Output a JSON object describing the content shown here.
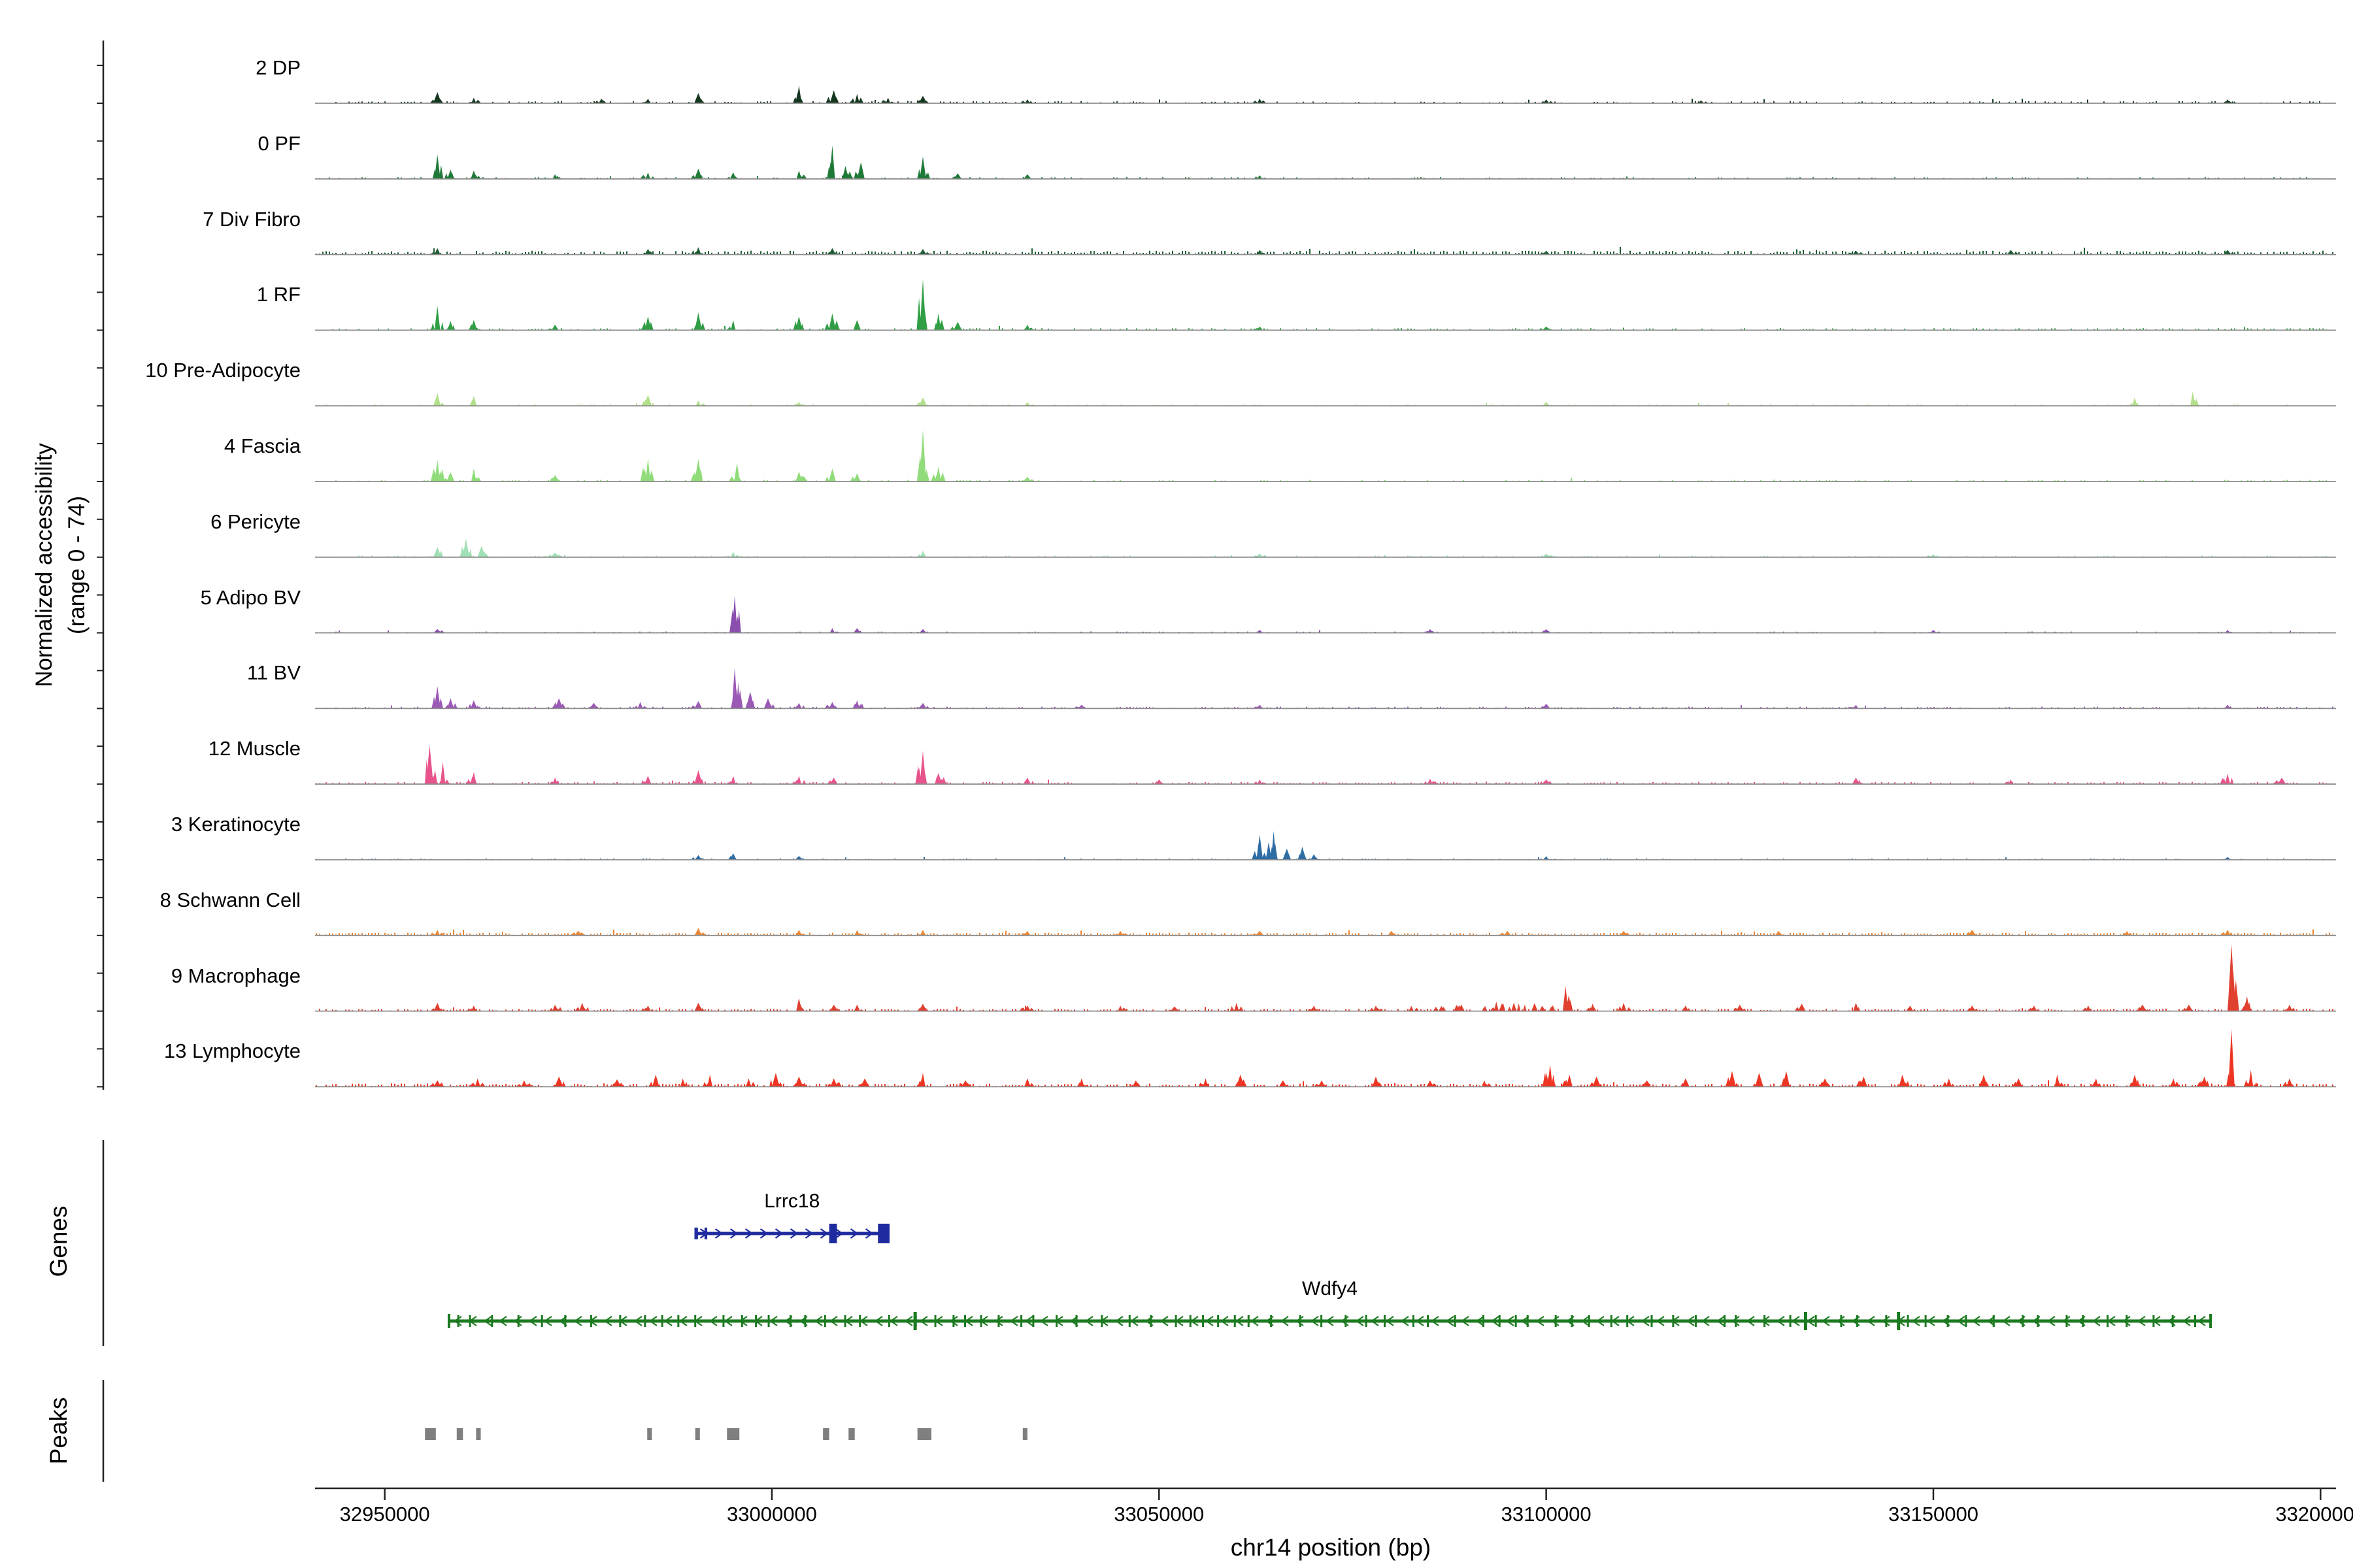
{
  "y_axis": {
    "label_line1": "Normalized accessibility",
    "label_line2": "(range 0 - 74)"
  },
  "x_axis": {
    "label": "chr14 position (bp)",
    "ticks": [
      {
        "bp": 32950000,
        "label": "32950000"
      },
      {
        "bp": 33000000,
        "label": "33000000"
      },
      {
        "bp": 33050000,
        "label": "33050000"
      },
      {
        "bp": 33100000,
        "label": "33100000"
      },
      {
        "bp": 33150000,
        "label": "33150000"
      },
      {
        "bp": 33200000,
        "label": "33200000"
      }
    ]
  },
  "sections": {
    "genes_label": "Genes",
    "peaks_label": "Peaks"
  },
  "chart_data": {
    "type": "area",
    "subtype": "genome-accessibility-tracks",
    "region": {
      "chrom": "chr14",
      "start": 32941000,
      "end": 33202000
    },
    "ylim": [
      0,
      74
    ],
    "tracks": [
      {
        "name": "2 DP",
        "color": "#14381f",
        "noise_amp": 2.2,
        "noise_density": 0.45,
        "peaks": [
          [
            32956800,
            12
          ],
          [
            32961500,
            6
          ],
          [
            32978000,
            5
          ],
          [
            32984000,
            5
          ],
          [
            32990500,
            11
          ],
          [
            33003500,
            19
          ],
          [
            33008000,
            14
          ],
          [
            33011000,
            10
          ],
          [
            33015000,
            6
          ],
          [
            33019500,
            8
          ],
          [
            33033000,
            4
          ],
          [
            33063000,
            5
          ],
          [
            33100000,
            4
          ],
          [
            33120000,
            3
          ],
          [
            33188000,
            4
          ]
        ]
      },
      {
        "name": "0 PF",
        "color": "#1f7a38",
        "noise_amp": 1.8,
        "noise_density": 0.4,
        "peaks": [
          [
            32956800,
            26
          ],
          [
            32958500,
            10
          ],
          [
            32961500,
            9
          ],
          [
            32972000,
            5
          ],
          [
            32984000,
            7
          ],
          [
            32990500,
            11
          ],
          [
            32995000,
            7
          ],
          [
            33003500,
            9
          ],
          [
            33007800,
            36
          ],
          [
            33009500,
            14
          ],
          [
            33011500,
            18
          ],
          [
            33019500,
            24
          ],
          [
            33024000,
            6
          ],
          [
            33033000,
            5
          ],
          [
            33063000,
            4
          ]
        ]
      },
      {
        "name": "7 Div Fibro",
        "color": "#1d5c32",
        "noise_amp": 4.2,
        "noise_density": 0.8,
        "peaks": [
          [
            32956800,
            7
          ],
          [
            32984000,
            6
          ],
          [
            32990500,
            8
          ],
          [
            33007800,
            7
          ],
          [
            33019500,
            6
          ],
          [
            33063000,
            5
          ],
          [
            33100000,
            4
          ],
          [
            33140000,
            4
          ],
          [
            33160000,
            5
          ],
          [
            33188000,
            5
          ]
        ]
      },
      {
        "name": "1 RF",
        "color": "#2f9e44",
        "noise_amp": 2.2,
        "noise_density": 0.5,
        "peaks": [
          [
            32956800,
            26
          ],
          [
            32958500,
            10
          ],
          [
            32961500,
            11
          ],
          [
            32972000,
            6
          ],
          [
            32984000,
            15
          ],
          [
            32990500,
            19
          ],
          [
            32995000,
            11
          ],
          [
            33003500,
            15
          ],
          [
            33007800,
            18
          ],
          [
            33011000,
            11
          ],
          [
            33019500,
            55
          ],
          [
            33021500,
            18
          ],
          [
            33024000,
            9
          ],
          [
            33033000,
            6
          ],
          [
            33063000,
            4
          ],
          [
            33100000,
            4
          ]
        ]
      },
      {
        "name": "10 Pre-Adipocyte",
        "color": "#b2df8a",
        "noise_amp": 1.5,
        "noise_density": 0.35,
        "peaks": [
          [
            32956800,
            14
          ],
          [
            32961500,
            11
          ],
          [
            32984000,
            12
          ],
          [
            32990500,
            6
          ],
          [
            33003500,
            4
          ],
          [
            33019500,
            9
          ],
          [
            33033000,
            4
          ],
          [
            33100000,
            4
          ],
          [
            33176000,
            9
          ],
          [
            33183500,
            16
          ]
        ]
      },
      {
        "name": "4 Fascia",
        "color": "#90dc7a",
        "noise_amp": 1.8,
        "noise_density": 0.4,
        "peaks": [
          [
            32956800,
            23
          ],
          [
            32958500,
            10
          ],
          [
            32961500,
            14
          ],
          [
            32972000,
            7
          ],
          [
            32984000,
            25
          ],
          [
            32990500,
            24
          ],
          [
            32995500,
            20
          ],
          [
            33003500,
            11
          ],
          [
            33007800,
            14
          ],
          [
            33011000,
            9
          ],
          [
            33019500,
            56
          ],
          [
            33021500,
            16
          ],
          [
            33033000,
            5
          ]
        ]
      },
      {
        "name": "6 Pericyte",
        "color": "#9fe0b5",
        "noise_amp": 1.6,
        "noise_density": 0.4,
        "peaks": [
          [
            32956800,
            11
          ],
          [
            32960500,
            20
          ],
          [
            32962500,
            12
          ],
          [
            32972000,
            5
          ],
          [
            32995000,
            6
          ],
          [
            33019500,
            7
          ],
          [
            33063000,
            4
          ],
          [
            33100000,
            4
          ],
          [
            33150000,
            3
          ]
        ]
      },
      {
        "name": "5 Adipo BV",
        "color": "#8a4fae",
        "noise_amp": 1.4,
        "noise_density": 0.35,
        "peaks": [
          [
            32956800,
            4
          ],
          [
            32995200,
            40
          ],
          [
            33007800,
            5
          ],
          [
            33011000,
            5
          ],
          [
            33019500,
            4
          ],
          [
            33063000,
            3
          ],
          [
            33085000,
            4
          ],
          [
            33100000,
            4
          ],
          [
            33150000,
            3
          ],
          [
            33188000,
            3
          ]
        ]
      },
      {
        "name": "11 BV",
        "color": "#9b59b6",
        "noise_amp": 2.0,
        "noise_density": 0.5,
        "peaks": [
          [
            32956800,
            24
          ],
          [
            32958500,
            11
          ],
          [
            32961500,
            9
          ],
          [
            32972500,
            11
          ],
          [
            32977000,
            6
          ],
          [
            32983000,
            7
          ],
          [
            32990500,
            8
          ],
          [
            32995200,
            44
          ],
          [
            32997200,
            18
          ],
          [
            32999500,
            11
          ],
          [
            33003500,
            6
          ],
          [
            33007800,
            7
          ],
          [
            33011000,
            9
          ],
          [
            33019500,
            6
          ],
          [
            33040000,
            4
          ],
          [
            33063000,
            4
          ],
          [
            33100000,
            5
          ],
          [
            33140000,
            4
          ],
          [
            33188000,
            4
          ]
        ]
      },
      {
        "name": "12 Muscle",
        "color": "#e8538c",
        "noise_amp": 2.4,
        "noise_density": 0.6,
        "peaks": [
          [
            32955800,
            42
          ],
          [
            32957500,
            24
          ],
          [
            32961500,
            13
          ],
          [
            32972000,
            7
          ],
          [
            32984000,
            9
          ],
          [
            32990500,
            15
          ],
          [
            32995000,
            9
          ],
          [
            33003500,
            9
          ],
          [
            33008000,
            7
          ],
          [
            33019500,
            36
          ],
          [
            33021500,
            12
          ],
          [
            33033000,
            7
          ],
          [
            33050000,
            5
          ],
          [
            33063000,
            5
          ],
          [
            33085000,
            6
          ],
          [
            33100000,
            5
          ],
          [
            33140000,
            7
          ],
          [
            33160000,
            5
          ],
          [
            33188000,
            11
          ],
          [
            33195000,
            7
          ]
        ]
      },
      {
        "name": "3 Keratinocyte",
        "color": "#2e6da4",
        "noise_amp": 1.4,
        "noise_density": 0.4,
        "peaks": [
          [
            32990500,
            5
          ],
          [
            32995000,
            7
          ],
          [
            33003500,
            4
          ],
          [
            33063000,
            27
          ],
          [
            33064800,
            31
          ],
          [
            33066500,
            12
          ],
          [
            33068500,
            14
          ],
          [
            33070000,
            6
          ],
          [
            33100000,
            4
          ],
          [
            33188000,
            3
          ]
        ]
      },
      {
        "name": "8 Schwann Cell",
        "color": "#ec8633",
        "noise_amp": 3.0,
        "noise_density": 0.85,
        "peaks": [
          [
            32956800,
            6
          ],
          [
            32975000,
            5
          ],
          [
            32990500,
            8
          ],
          [
            33003500,
            6
          ],
          [
            33011000,
            6
          ],
          [
            33019500,
            6
          ],
          [
            33033000,
            5
          ],
          [
            33045000,
            5
          ],
          [
            33063000,
            5
          ],
          [
            33080000,
            5
          ],
          [
            33095000,
            5
          ],
          [
            33110000,
            5
          ],
          [
            33130000,
            5
          ],
          [
            33155000,
            6
          ],
          [
            33175000,
            5
          ],
          [
            33188000,
            6
          ]
        ]
      },
      {
        "name": "9 Macrophage",
        "color": "#e04030",
        "noise_amp": 2.6,
        "noise_density": 0.7,
        "peaks": [
          [
            32956800,
            9
          ],
          [
            32961500,
            6
          ],
          [
            32972000,
            7
          ],
          [
            32975500,
            9
          ],
          [
            32984000,
            6
          ],
          [
            32990500,
            9
          ],
          [
            33003500,
            14
          ],
          [
            33008000,
            7
          ],
          [
            33011000,
            7
          ],
          [
            33019500,
            8
          ],
          [
            33033000,
            6
          ],
          [
            33045000,
            6
          ],
          [
            33052000,
            5
          ],
          [
            33060000,
            9
          ],
          [
            33070000,
            6
          ],
          [
            33078000,
            6
          ],
          [
            33086000,
            9,
            7000
          ],
          [
            33094000,
            11,
            7000
          ],
          [
            33099000,
            12,
            4000
          ],
          [
            33102500,
            27
          ],
          [
            33106000,
            8
          ],
          [
            33110000,
            9
          ],
          [
            33118000,
            6
          ],
          [
            33125000,
            7
          ],
          [
            33133000,
            8
          ],
          [
            33140000,
            9
          ],
          [
            33147000,
            6
          ],
          [
            33155000,
            6
          ],
          [
            33163000,
            6
          ],
          [
            33170000,
            6
          ],
          [
            33177000,
            7
          ],
          [
            33183000,
            7
          ],
          [
            33188500,
            72
          ],
          [
            33190500,
            16
          ],
          [
            33196000,
            7
          ]
        ]
      },
      {
        "name": "13 Lymphocyte",
        "color": "#ee3524",
        "noise_amp": 3.4,
        "noise_density": 0.75,
        "peaks": [
          [
            32956800,
            7
          ],
          [
            32962000,
            9
          ],
          [
            32968000,
            7
          ],
          [
            32972500,
            11
          ],
          [
            32980000,
            8
          ],
          [
            32985000,
            13
          ],
          [
            32988500,
            9
          ],
          [
            32992000,
            13
          ],
          [
            32997000,
            9
          ],
          [
            33000500,
            15
          ],
          [
            33003500,
            11
          ],
          [
            33008000,
            9
          ],
          [
            33012000,
            9
          ],
          [
            33019500,
            15
          ],
          [
            33025000,
            7
          ],
          [
            33033000,
            9
          ],
          [
            33040000,
            9
          ],
          [
            33047000,
            7
          ],
          [
            33056000,
            9
          ],
          [
            33060500,
            13
          ],
          [
            33066000,
            7
          ],
          [
            33071000,
            7
          ],
          [
            33078000,
            11
          ],
          [
            33085000,
            7
          ],
          [
            33092000,
            7
          ],
          [
            33100500,
            24
          ],
          [
            33103000,
            13
          ],
          [
            33106500,
            11
          ],
          [
            33113000,
            7
          ],
          [
            33118000,
            9
          ],
          [
            33124000,
            17
          ],
          [
            33127500,
            15
          ],
          [
            33131000,
            17
          ],
          [
            33136000,
            9
          ],
          [
            33141000,
            11
          ],
          [
            33146000,
            13
          ],
          [
            33152000,
            9
          ],
          [
            33156500,
            13
          ],
          [
            33161000,
            9
          ],
          [
            33166000,
            13
          ],
          [
            33171000,
            9
          ],
          [
            33176000,
            13
          ],
          [
            33181000,
            9
          ],
          [
            33185000,
            11
          ],
          [
            33188500,
            62
          ],
          [
            33191000,
            18
          ],
          [
            33196000,
            9
          ]
        ]
      }
    ],
    "genes": [
      {
        "name": "Lrrc18",
        "strand": "+",
        "color": "#1f2a9e",
        "start": 32990000,
        "end": 33015200,
        "exons": [
          {
            "start": 32990000,
            "end": 32990450,
            "tall": false
          },
          {
            "start": 32991300,
            "end": 32991650,
            "tall": false
          },
          {
            "start": 33007400,
            "end": 33008400,
            "tall": true
          },
          {
            "start": 33013700,
            "end": 33015200,
            "tall": true
          }
        ]
      },
      {
        "name": "Wdfy4",
        "strand": "-",
        "color": "#1b7a1f",
        "start": 32958300,
        "end": 33185800,
        "exon_spacing": 2600,
        "tall_exons": [
          33018500,
          33133500,
          33145500
        ]
      }
    ],
    "peak_calls": [
      {
        "start": 32955200,
        "end": 32956600
      },
      {
        "start": 32959300,
        "end": 32960100
      },
      {
        "start": 32961800,
        "end": 32962400
      },
      {
        "start": 32983900,
        "end": 32984500
      },
      {
        "start": 32990100,
        "end": 32990700
      },
      {
        "start": 32994200,
        "end": 32995800
      },
      {
        "start": 33006600,
        "end": 33007400
      },
      {
        "start": 33009900,
        "end": 33010700
      },
      {
        "start": 33018800,
        "end": 33020600
      },
      {
        "start": 33032400,
        "end": 33033000
      }
    ]
  }
}
